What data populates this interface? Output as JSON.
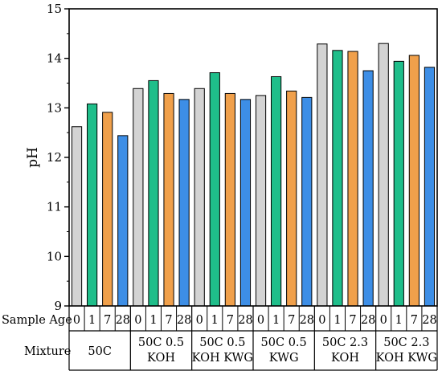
{
  "chart_data": {
    "type": "bar",
    "ylabel": "pH",
    "ylim": [
      9,
      15
    ],
    "yticks": [
      9,
      10,
      11,
      12,
      13,
      14,
      15
    ],
    "grid": false,
    "legend": "none",
    "row_labels": {
      "sample_age": "Sample Age",
      "mixture": "Mixture"
    },
    "ages": [
      "0",
      "1",
      "7",
      "28"
    ],
    "groups": [
      {
        "label": [
          "50C"
        ],
        "values": [
          12.62,
          13.08,
          12.91,
          12.44
        ]
      },
      {
        "label": [
          "50C 0.5",
          "KOH"
        ],
        "values": [
          13.39,
          13.55,
          13.29,
          13.17
        ]
      },
      {
        "label": [
          "50C 0.5",
          "KOH KWG"
        ],
        "values": [
          13.39,
          13.71,
          13.29,
          13.17
        ]
      },
      {
        "label": [
          "50C 0.5",
          "KWG"
        ],
        "values": [
          13.25,
          13.63,
          13.34,
          13.21
        ]
      },
      {
        "label": [
          "50C 2.3",
          "KOH"
        ],
        "values": [
          14.29,
          14.16,
          14.14,
          13.75
        ]
      },
      {
        "label": [
          "50C 2.3",
          "KOH KWG"
        ],
        "values": [
          14.3,
          13.94,
          14.06,
          13.82
        ]
      }
    ],
    "series_colors": [
      "#d3d3d3",
      "#1fbe8a",
      "#f0a04b",
      "#3d8ee6"
    ]
  }
}
